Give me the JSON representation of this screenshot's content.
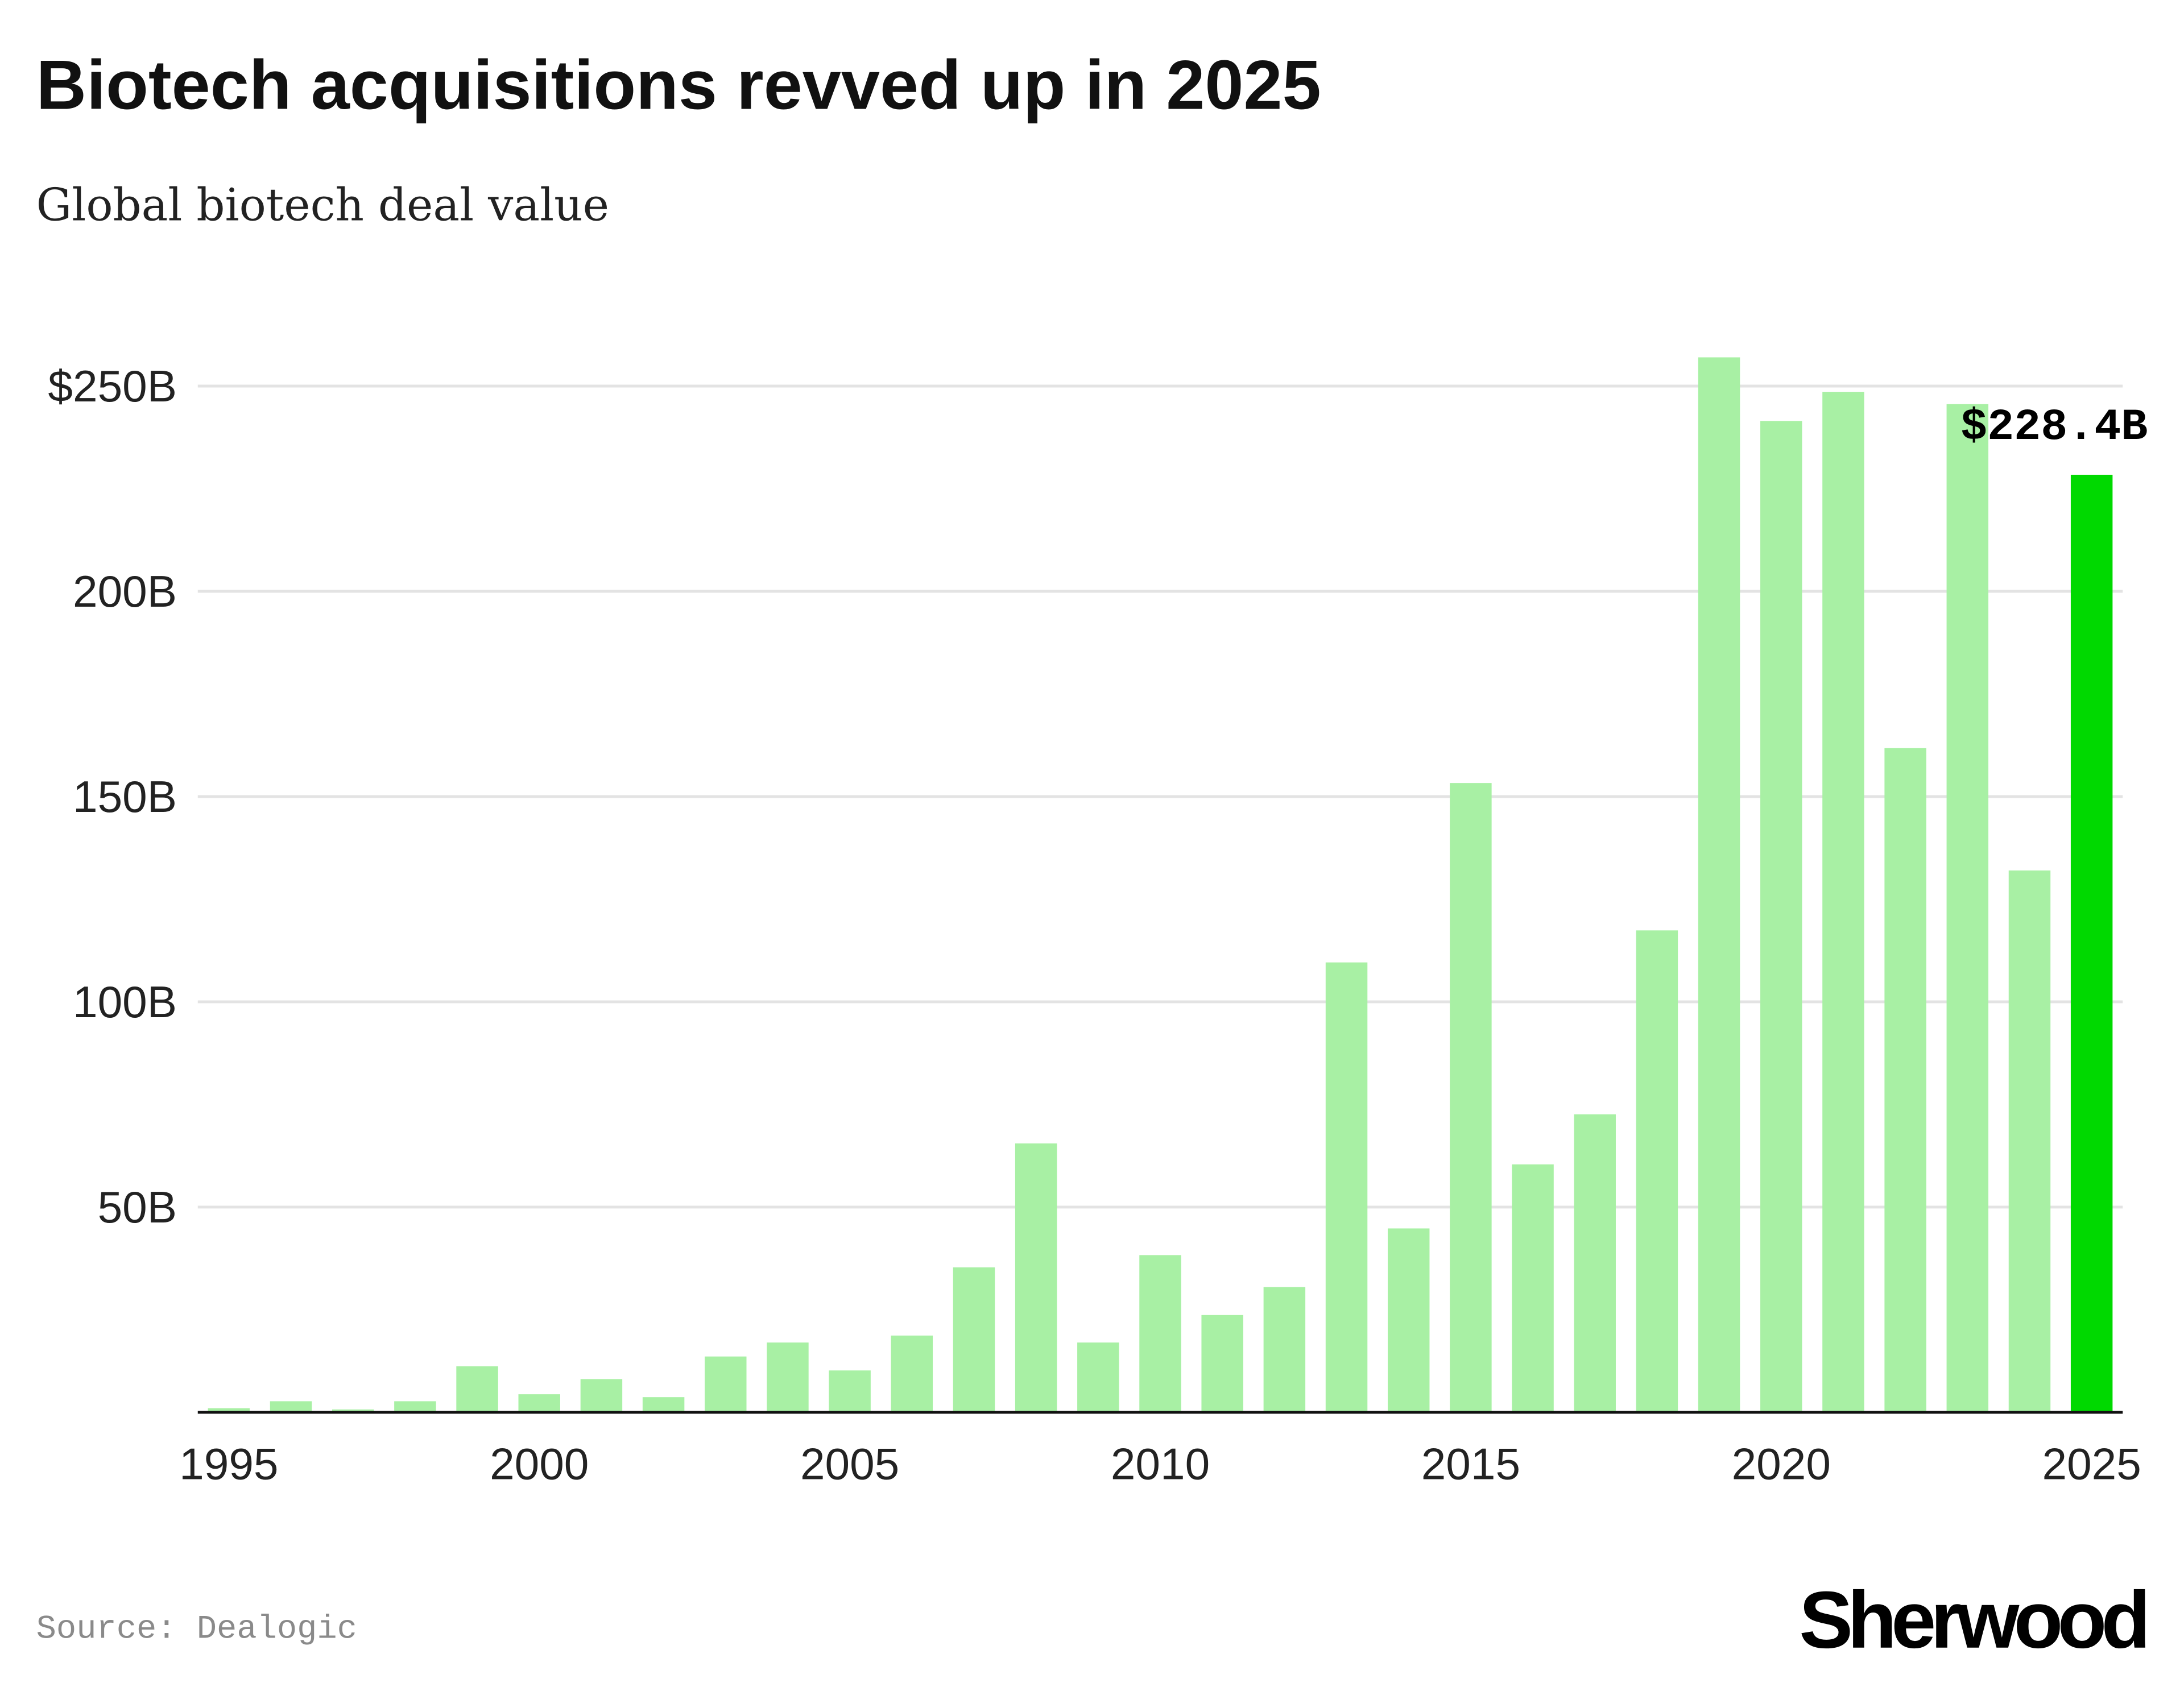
{
  "chart_data": {
    "type": "bar",
    "title": "Biotech acquisitions revved up in 2025",
    "subtitle": "Global biotech deal value",
    "xlabel": "",
    "ylabel": "",
    "categories": [
      1995,
      1996,
      1997,
      1998,
      1999,
      2000,
      2001,
      2002,
      2003,
      2004,
      2005,
      2006,
      2007,
      2008,
      2009,
      2010,
      2011,
      2012,
      2013,
      2014,
      2015,
      2016,
      2017,
      2018,
      2019,
      2020,
      2021,
      2022,
      2023,
      2024,
      2025
    ],
    "values": [
      1,
      2.7,
      0.7,
      2.7,
      11.2,
      4.4,
      8.1,
      3.7,
      13.6,
      17,
      10.2,
      18.7,
      35.3,
      65.5,
      17,
      38.3,
      23.7,
      30.5,
      109.6,
      44.8,
      153.3,
      60.4,
      72.6,
      117.4,
      257,
      241.5,
      248.6,
      161.8,
      245.6,
      132,
      228.4
    ],
    "unit": "B USD",
    "ylim": [
      0,
      260
    ],
    "y_ticks": [
      {
        "value": 50,
        "label": "50B"
      },
      {
        "value": 100,
        "label": "100B"
      },
      {
        "value": 150,
        "label": "150B"
      },
      {
        "value": 200,
        "label": "200B"
      },
      {
        "value": 250,
        "label": "$250B"
      }
    ],
    "x_ticks": [
      "1995",
      "2000",
      "2005",
      "2010",
      "2015",
      "2020",
      "2025"
    ],
    "grid": true,
    "highlight": {
      "category": 2025,
      "label": "$228.4B"
    },
    "colors": {
      "bar": "#a8f0a4",
      "highlight": "#00d900",
      "grid": "#e3e3e3",
      "axis": "#111111"
    },
    "source": "Source: Dealogic",
    "logo": "Sherwood"
  }
}
